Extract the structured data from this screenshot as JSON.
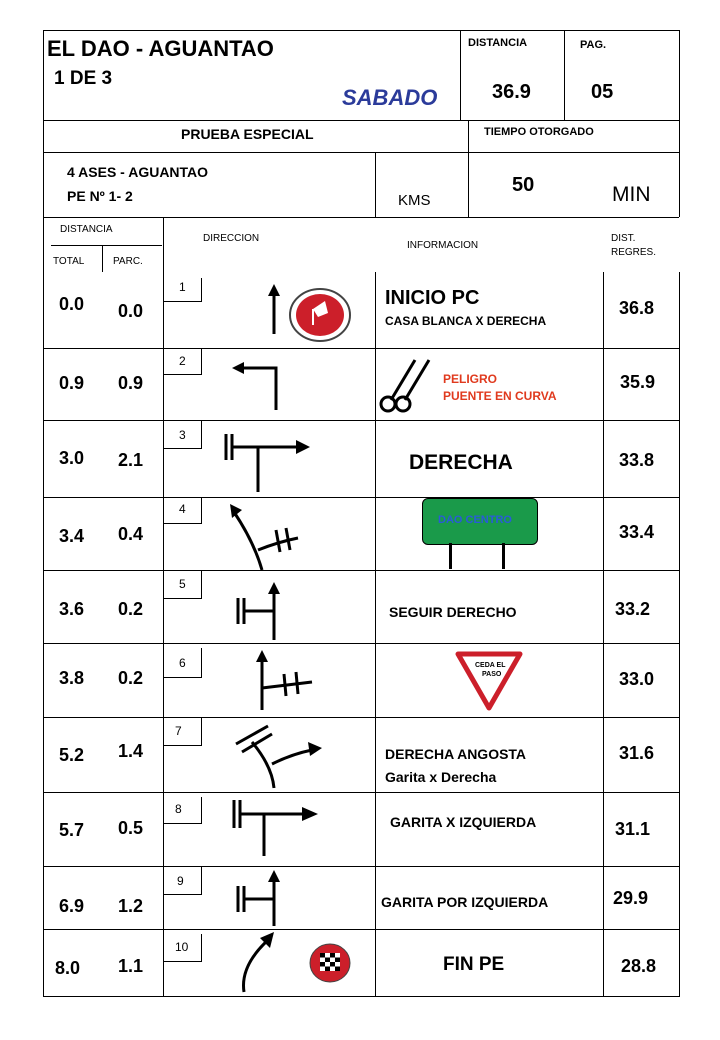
{
  "header": {
    "title": "EL DAO - AGUANTAO",
    "subtitle": "1 DE 3",
    "day": "SABADO",
    "distance_label": "DISTANCIA",
    "page_label": "PAG.",
    "distance_value": "36.9",
    "page_value": "05",
    "special_label": "PRUEBA ESPECIAL",
    "time_label": "TIEMPO OTORGADO",
    "route_line1": "4 ASES - AGUANTAO",
    "route_line2": "PE  Nº 1- 2",
    "kms_label": "KMS",
    "time_value": "50",
    "time_unit": "MIN"
  },
  "columns": {
    "distancia": "DISTANCIA",
    "total": "TOTAL",
    "parc": "PARC.",
    "direccion": "DIRECCION",
    "informacion": "INFORMACION",
    "dist_regres_1": "DIST.",
    "dist_regres_2": "REGRES."
  },
  "rows": [
    {
      "n": "1",
      "total": "0.0",
      "parc": "0.0",
      "info_main": "INICIO PC",
      "info_sub": "CASA BLANCA X DERECHA",
      "regres": "36.8"
    },
    {
      "n": "2",
      "total": "0.9",
      "parc": "0.9",
      "info_main": "PELIGRO",
      "info_sub": "PUENTE EN CURVA",
      "regres": "35.9"
    },
    {
      "n": "3",
      "total": "3.0",
      "parc": "2.1",
      "info_main": "DERECHA",
      "info_sub": "",
      "regres": "33.8"
    },
    {
      "n": "4",
      "total": "3.4",
      "parc": "0.4",
      "info_main": "DAO CENTRO",
      "info_sub": "",
      "regres": "33.4"
    },
    {
      "n": "5",
      "total": "3.6",
      "parc": "0.2",
      "info_main": "SEGUIR DERECHO",
      "info_sub": "",
      "regres": "33.2"
    },
    {
      "n": "6",
      "total": "3.8",
      "parc": "0.2",
      "info_main": "CEDA EL",
      "info_sub": "PASO",
      "regres": "33.0"
    },
    {
      "n": "7",
      "total": "5.2",
      "parc": "1.4",
      "info_main": "DERECHA ANGOSTA",
      "info_sub": "Garita x Derecha",
      "regres": "31.6"
    },
    {
      "n": "8",
      "total": "5.7",
      "parc": "0.5",
      "info_main": "GARITA X IZQUIERDA",
      "info_sub": "",
      "regres": "31.1"
    },
    {
      "n": "9",
      "total": "6.9",
      "parc": "1.2",
      "info_main": "GARITA POR IZQUIERDA",
      "info_sub": "",
      "regres": "29.9"
    },
    {
      "n": "10",
      "total": "8.0",
      "parc": "1.1",
      "info_main": "FIN PE",
      "info_sub": "",
      "regres": "28.8"
    }
  ],
  "colors": {
    "day": "#2b3b9a",
    "warning": "#e03a1e",
    "sign_green": "#1a9a4a",
    "sign_text": "#2a5bd8",
    "stop_red": "#cc1f2a"
  }
}
